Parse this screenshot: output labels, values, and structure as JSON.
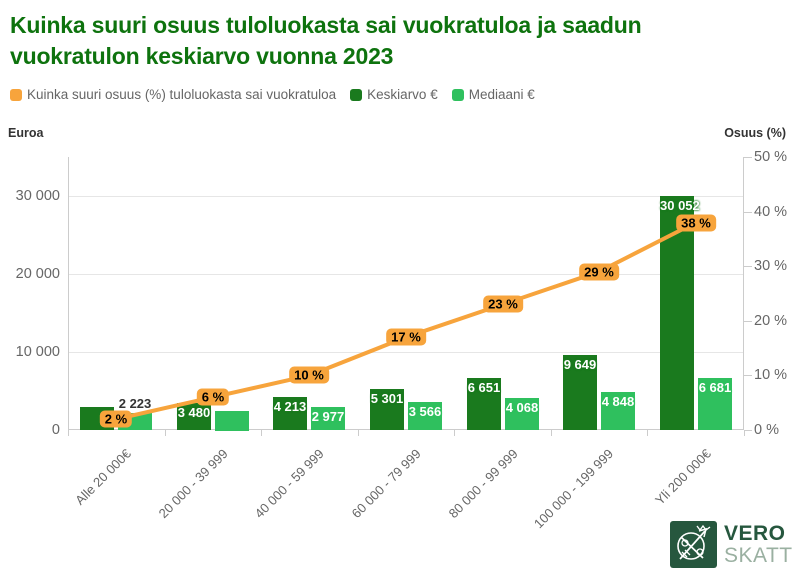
{
  "title": "Kuinka suuri osuus tuloluokasta sai vuokratuloa ja saadun vuokratulon keskiarvo vuonna 2023",
  "legend": [
    {
      "label": "Kuinka suuri osuus (%) tuloluokasta sai vuokratuloa",
      "color": "#f7a43c"
    },
    {
      "label": "Keskiarvo €",
      "color": "#1a7a1e"
    },
    {
      "label": "Mediaani €",
      "color": "#2fc05e"
    }
  ],
  "colors": {
    "accent_orange": "#f7a43c",
    "dark_green": "#1a7a1e",
    "light_green": "#2fc05e",
    "title_green": "#0e730e",
    "logo_green": "#26573e",
    "gridline": "#e6e6e6",
    "axis_text": "#666666"
  },
  "chart_data": {
    "type": "combo-column-line",
    "categories": [
      "Alle 20 000€",
      "20 000 - 39 999",
      "40 000 - 59 999",
      "60 000 - 79 999",
      "80 000 - 99 999",
      "100 000 - 199 999",
      "Yli 200 000€"
    ],
    "left_axis": {
      "title": "Euroa",
      "tick_labels": [
        "0",
        "10 000",
        "20 000",
        "30 000"
      ],
      "tick_values": [
        0,
        10000,
        20000,
        30000
      ],
      "max": 35000
    },
    "right_axis": {
      "title": "Osuus (%)",
      "tick_labels": [
        "0 %",
        "10 %",
        "20 %",
        "30 %",
        "40 %",
        "50 %"
      ],
      "tick_values": [
        0,
        10,
        20,
        30,
        40,
        50
      ],
      "max": 50
    },
    "series": [
      {
        "name": "Kuinka suuri osuus (%) tuloluokasta sai vuokratuloa",
        "type": "line",
        "axis": "right",
        "color": "#f7a43c",
        "values": [
          2,
          6,
          10,
          17,
          23,
          29,
          38
        ],
        "point_labels": [
          "2 %",
          "6 %",
          "10 %",
          "17 %",
          "23 %",
          "29 %",
          "38 %"
        ]
      },
      {
        "name": "Keskiarvo €",
        "type": "column",
        "axis": "left",
        "color": "#1a7a1e",
        "values": [
          2950,
          3480,
          4213,
          5301,
          6651,
          9649,
          30052
        ],
        "point_labels": [
          null,
          "3 480",
          "4 213",
          "5 301",
          "6 651",
          "9 649",
          "30 052"
        ]
      },
      {
        "name": "Mediaani €",
        "type": "column",
        "axis": "left",
        "color": "#2fc05e",
        "values": [
          2223,
          2500,
          2977,
          3566,
          4068,
          4848,
          6681
        ],
        "point_labels": [
          "2 223",
          null,
          "2 977",
          "3 566",
          "4 068",
          "4 848",
          "6 681"
        ]
      }
    ]
  },
  "footer": {
    "logo_text_top": "VERO",
    "logo_text_bottom": "SKATT"
  }
}
